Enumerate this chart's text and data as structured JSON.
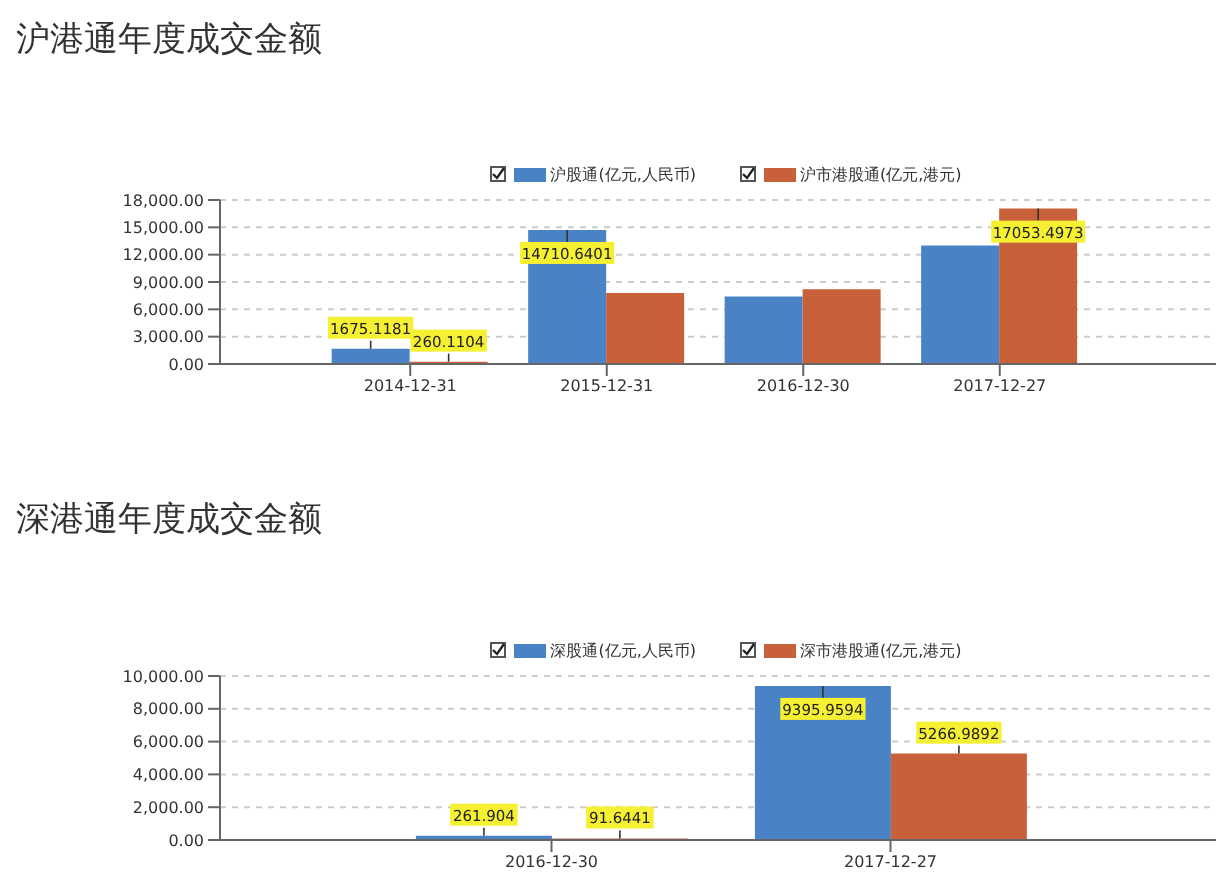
{
  "chart_data": [
    {
      "type": "bar",
      "title": "沪港通年度成交金额",
      "categories": [
        "2014-12-31",
        "2015-12-31",
        "2016-12-30",
        "2017-12-27"
      ],
      "series": [
        {
          "name": "沪股通(亿元,人民币)",
          "color": "#4a82c6",
          "values": [
            1675.1181,
            14710.6401,
            7400,
            13000
          ],
          "value_labels": [
            "1675.1181",
            "14710.6401",
            null,
            null
          ]
        },
        {
          "name": "沪市港股通(亿元,港元)",
          "color": "#c8613a",
          "values": [
            260.1104,
            7800,
            8200,
            17053.4973
          ],
          "value_labels": [
            "260.1104",
            null,
            null,
            "17053.4973"
          ]
        }
      ],
      "ylim": [
        0,
        18000
      ],
      "yticks": [
        {
          "value": 0,
          "label": "0.00"
        },
        {
          "value": 3000,
          "label": "3,000.00"
        },
        {
          "value": 6000,
          "label": "6,000.00"
        },
        {
          "value": 9000,
          "label": "9,000.00"
        },
        {
          "value": 12000,
          "label": "12,000.00"
        },
        {
          "value": 15000,
          "label": "15,000.00"
        },
        {
          "value": 18000,
          "label": "18,000.00"
        }
      ],
      "grid": "y",
      "legend": "top"
    },
    {
      "type": "bar",
      "title": "深港通年度成交金额",
      "categories": [
        "2016-12-30",
        "2017-12-27"
      ],
      "series": [
        {
          "name": "深股通(亿元,人民币)",
          "color": "#4a82c6",
          "values": [
            261.904,
            9395.9594
          ],
          "value_labels": [
            "261.904",
            "9395.9594"
          ]
        },
        {
          "name": "深市港股通(亿元,港元)",
          "color": "#c8613a",
          "values": [
            91.6441,
            5266.9892
          ],
          "value_labels": [
            "91.6441",
            "5266.9892"
          ]
        }
      ],
      "ylim": [
        0,
        10000
      ],
      "yticks": [
        {
          "value": 0,
          "label": "0.00"
        },
        {
          "value": 2000,
          "label": "2,000.00"
        },
        {
          "value": 4000,
          "label": "4,000.00"
        },
        {
          "value": 6000,
          "label": "6,000.00"
        },
        {
          "value": 8000,
          "label": "8,000.00"
        },
        {
          "value": 10000,
          "label": "10,000.00"
        }
      ],
      "grid": "y",
      "legend": "top"
    }
  ]
}
